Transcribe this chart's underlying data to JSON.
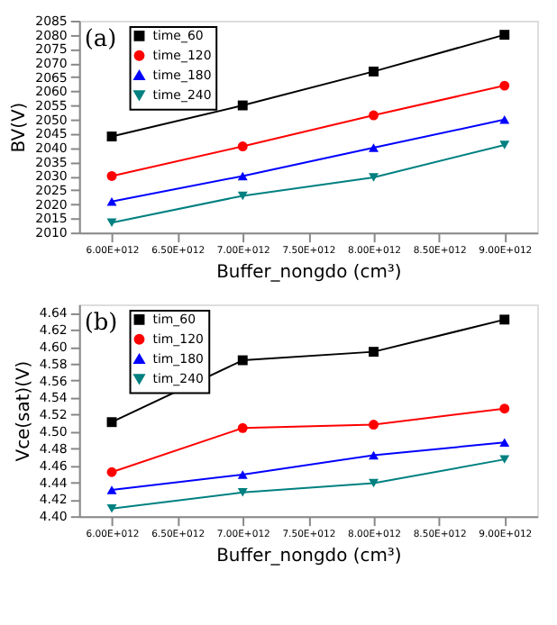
{
  "chart_data": [
    {
      "type": "line",
      "annotations": [
        "(a)"
      ],
      "xlabel": "Buffer_nongdo (cm³)",
      "ylabel": "BV(V)",
      "x": [
        6000000000000,
        7000000000000,
        8000000000000,
        9000000000000
      ],
      "xlim": [
        5750000000000,
        9250000000000
      ],
      "xticks": [
        {
          "value": 6000000000000,
          "label": "6.00E+012"
        },
        {
          "value": 6500000000000,
          "label": "6.50E+012"
        },
        {
          "value": 7000000000000,
          "label": "7.00E+012"
        },
        {
          "value": 7500000000000,
          "label": "7.50E+012"
        },
        {
          "value": 8000000000000,
          "label": "8.00E+012"
        },
        {
          "value": 8500000000000,
          "label": "8.50E+012"
        },
        {
          "value": 9000000000000,
          "label": "9.00E+012"
        }
      ],
      "ylim": [
        2010,
        2085
      ],
      "yticks": [
        2010,
        2015,
        2020,
        2025,
        2030,
        2035,
        2040,
        2045,
        2050,
        2055,
        2060,
        2065,
        2070,
        2075,
        2080,
        2085
      ],
      "grid": false,
      "legend": "top left",
      "line_style": "solid",
      "series": [
        {
          "name": "time_60",
          "color": "#000000",
          "marker": "square",
          "values": [
            2044,
            2055,
            2067,
            2080
          ]
        },
        {
          "name": "time_120",
          "color": "#ff0000",
          "marker": "circle",
          "values": [
            2030,
            2040.5,
            2051.5,
            2062
          ]
        },
        {
          "name": "time_180",
          "color": "#0000ff",
          "marker": "triangle",
          "values": [
            2021,
            2030,
            2040,
            2050
          ]
        },
        {
          "name": "time_240",
          "color": "#008080",
          "marker": "triangle-down",
          "values": [
            2013.5,
            2023,
            2029.5,
            2041
          ]
        }
      ]
    },
    {
      "type": "line",
      "annotations": [
        "(b)"
      ],
      "xlabel": "Buffer_nongdo (cm³)",
      "ylabel": "Vce(sat)(V)",
      "x": [
        6000000000000,
        7000000000000,
        8000000000000,
        9000000000000
      ],
      "xlim": [
        5750000000000,
        9250000000000
      ],
      "xticks": [
        {
          "value": 6000000000000,
          "label": "6.00E+012"
        },
        {
          "value": 6500000000000,
          "label": "6.50E+012"
        },
        {
          "value": 7000000000000,
          "label": "7.00E+012"
        },
        {
          "value": 7500000000000,
          "label": "7.50E+012"
        },
        {
          "value": 8000000000000,
          "label": "8.00E+012"
        },
        {
          "value": 8500000000000,
          "label": "8.50E+012"
        },
        {
          "value": 9000000000000,
          "label": "9.00E+012"
        }
      ],
      "ylim": [
        4.4,
        4.65
      ],
      "yticks": [
        {
          "value": 4.4,
          "label": "4.40"
        },
        4.42,
        4.44,
        4.46,
        4.48,
        {
          "value": 4.5,
          "label": "4.50"
        },
        4.52,
        4.54,
        4.56,
        4.58,
        {
          "value": 4.6,
          "label": "4.60"
        },
        4.62,
        4.64
      ],
      "grid": false,
      "legend": "top left",
      "line_style": "solid",
      "series": [
        {
          "name": "tim_60",
          "color": "#000000",
          "marker": "square",
          "values": [
            4.511,
            4.584,
            4.594,
            4.632
          ]
        },
        {
          "name": "tim_120",
          "color": "#ff0000",
          "marker": "circle",
          "values": [
            4.452,
            4.504,
            4.508,
            4.527
          ]
        },
        {
          "name": "tim_180",
          "color": "#0000ff",
          "marker": "triangle",
          "values": [
            4.431,
            4.449,
            4.472,
            4.487
          ]
        },
        {
          "name": "tim_240",
          "color": "#008080",
          "marker": "triangle-down",
          "values": [
            4.409,
            4.428,
            4.439,
            4.467
          ]
        }
      ]
    }
  ]
}
